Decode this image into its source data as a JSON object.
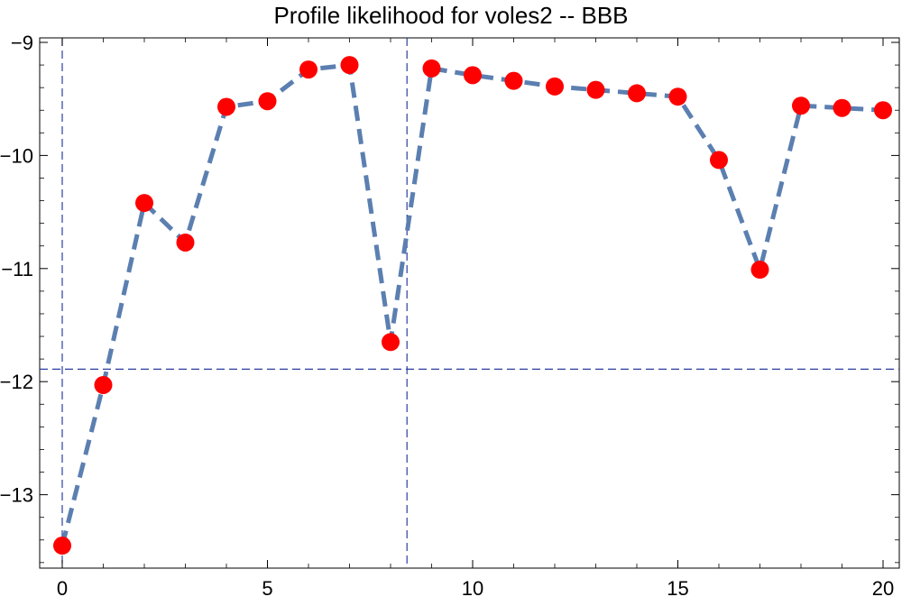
{
  "chart_data": {
    "type": "line",
    "title": "Profile likelihood for voles2 -- BBB",
    "xlabel": "",
    "ylabel": "",
    "xlim": [
      0,
      20
    ],
    "ylim": [
      -13.65,
      -8.97
    ],
    "x_ticks": [
      0,
      5,
      10,
      15,
      20
    ],
    "y_ticks": [
      -9,
      -10,
      -11,
      -12,
      -13
    ],
    "x_tick_labels": [
      "0",
      "5",
      "10",
      "15",
      "20"
    ],
    "y_tick_labels": [
      "−9",
      "−10",
      "−11",
      "−12",
      "−13"
    ],
    "grid": false,
    "series": [
      {
        "x": [
          0,
          1,
          2,
          3,
          4,
          5,
          6,
          7,
          8,
          9,
          10,
          11,
          12,
          13,
          14,
          15,
          16,
          17,
          18,
          19,
          20
        ],
        "values": [
          -13.45,
          -12.03,
          -10.42,
          -10.77,
          -9.57,
          -9.52,
          -9.24,
          -9.2,
          -11.65,
          -9.23,
          -9.29,
          -9.34,
          -9.39,
          -9.42,
          -9.45,
          -9.48,
          -10.04,
          -11.01,
          -9.56,
          -9.58,
          -9.6
        ],
        "line_color": "#5b7fb0",
        "line_style": "dashed",
        "marker_color": "#ff0000"
      }
    ],
    "reference_lines": {
      "horizontal_y": -11.89,
      "vertical_x": 8.4,
      "color": "#2b3fa0",
      "style": "dashed"
    }
  }
}
